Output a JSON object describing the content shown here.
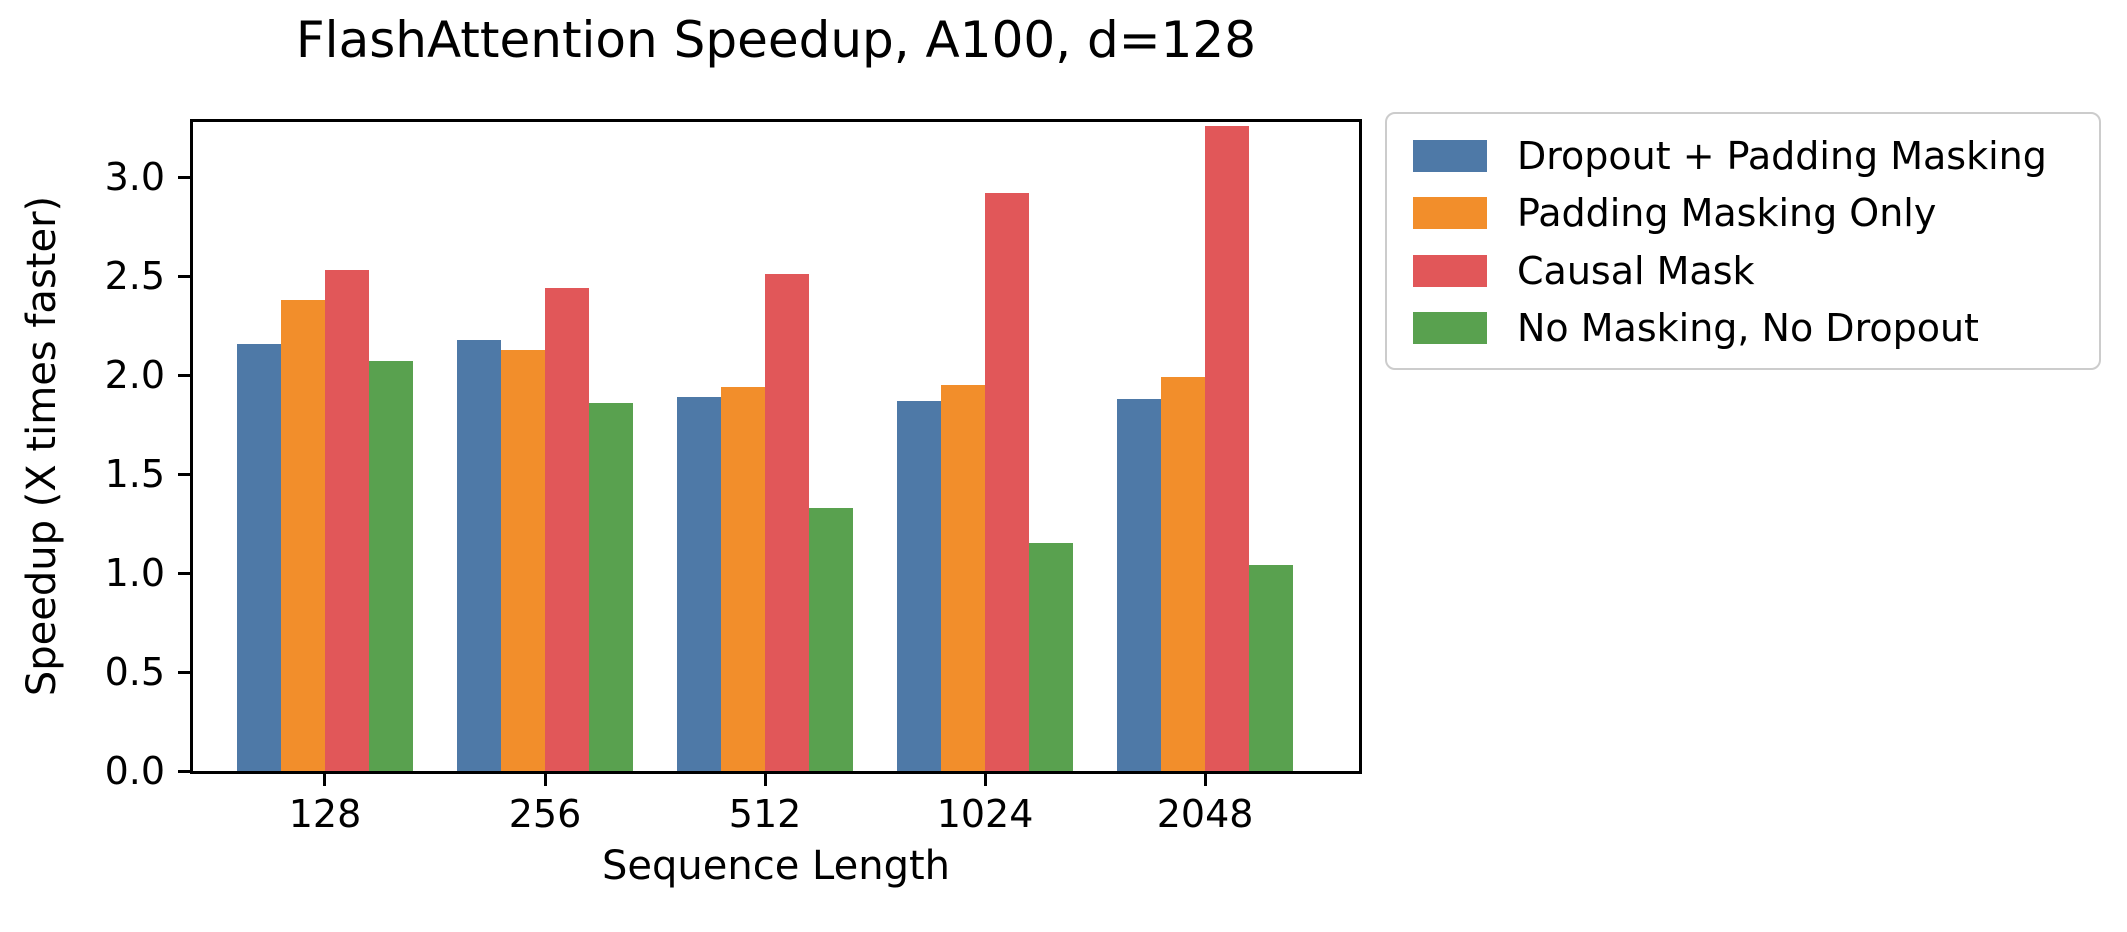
{
  "chart_data": {
    "type": "bar",
    "title": "FlashAttention Speedup, A100, d=128",
    "xlabel": "Sequence Length",
    "ylabel": "Speedup (X times faster)",
    "categories": [
      "128",
      "256",
      "512",
      "1024",
      "2048"
    ],
    "series": [
      {
        "name": "Dropout + Padding Masking",
        "color": "#4E79A7",
        "values": [
          2.16,
          2.18,
          1.89,
          1.87,
          1.88
        ]
      },
      {
        "name": "Padding Masking Only",
        "color": "#F28E2B",
        "values": [
          2.38,
          2.13,
          1.94,
          1.95,
          1.99
        ]
      },
      {
        "name": "Causal Mask",
        "color": "#E15759",
        "values": [
          2.53,
          2.44,
          2.51,
          2.92,
          3.26
        ]
      },
      {
        "name": "No Masking, No Dropout",
        "color": "#59A14F",
        "values": [
          2.07,
          1.86,
          1.33,
          1.15,
          1.04
        ]
      }
    ],
    "ylim": [
      0,
      3.28
    ],
    "yticks": [
      "0.0",
      "0.5",
      "1.0",
      "1.5",
      "2.0",
      "2.5",
      "3.0"
    ],
    "grid": false,
    "legend_position": "outside-upper-right",
    "axis_color": "#000000",
    "legend_border_color": "#cccccc",
    "background_color": "#ffffff"
  }
}
